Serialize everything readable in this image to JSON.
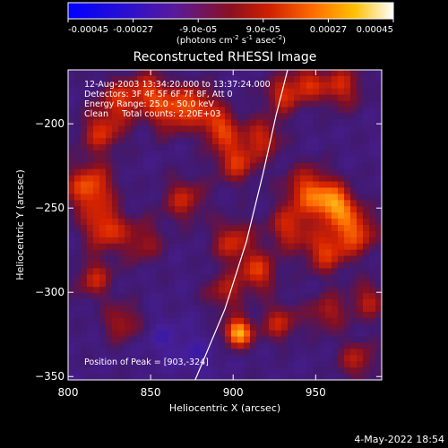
{
  "title": "Reconstructed RHESSI Image",
  "info_lines": [
    "12-Aug-2003 13:34:20.000 to 13:37:24.000",
    "Detectors: 3F 4F 5F 6F 7F 8F, Att 0",
    "Energy Range: 25.0 - 50.0 keV",
    "Clean     Total counts: 2.20E+03"
  ],
  "peak_label": "Position of Peak = [903,-324]",
  "timestamp": "4-May-2022 18:54",
  "colorbar": {
    "ticks": [
      {
        "label": "-0.00045",
        "value": -0.00045
      },
      {
        "label": "-0.00027",
        "value": -0.00027
      },
      {
        "label": "-9.0e-05",
        "value": -9e-05
      },
      {
        "label": "9.0e-05",
        "value": 9e-05
      },
      {
        "label": "0.00027",
        "value": 0.00027
      },
      {
        "label": "0.00045",
        "value": 0.00045
      }
    ],
    "range": [
      -0.00045,
      0.00045
    ],
    "unit_label": "(photons cm",
    "unit_sup1": "-2",
    "unit_mid": " s",
    "unit_sup2": "-1",
    "unit_mid2": " asec",
    "unit_sup3": "-2",
    "unit_end": ")"
  },
  "chart_data": {
    "type": "heatmap",
    "title": "Reconstructed RHESSI Image",
    "xlabel": "Heliocentric X (arcsec)",
    "ylabel": "Heliocentric Y (arcsec)",
    "xlim": [
      800,
      990
    ],
    "ylim": [
      -352,
      -168
    ],
    "xticks": [
      800,
      850,
      900,
      950
    ],
    "yticks": [
      -200,
      -250,
      -300,
      -350
    ],
    "peak": [
      903,
      -324
    ],
    "limb_curve": [
      [
        877,
        -352
      ],
      [
        895,
        -310
      ],
      [
        908,
        -270
      ],
      [
        918,
        -230
      ],
      [
        926,
        -195
      ],
      [
        933,
        -168
      ]
    ]
  }
}
